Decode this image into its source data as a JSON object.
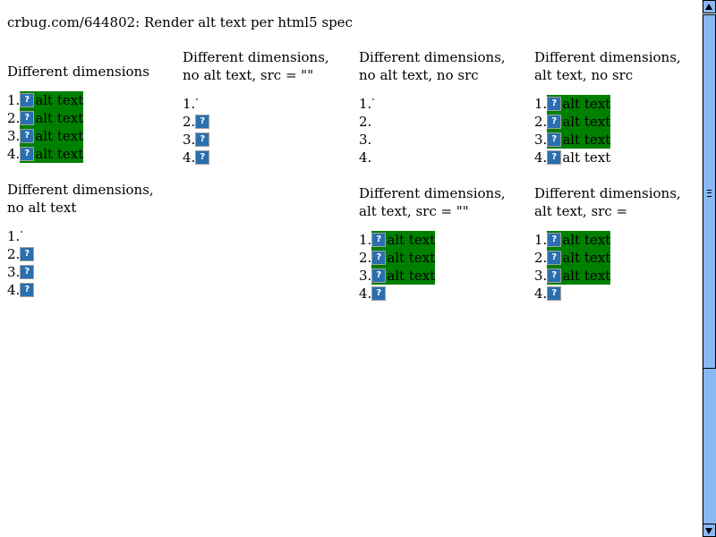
{
  "page": {
    "title": "crbug.com/644802: Render alt text per html5 spec"
  },
  "sections": [
    {
      "id": "diff-dims",
      "title": "Different dimensions",
      "rows": [
        {
          "num": "1.",
          "kind": "icon-alt",
          "alt": "alt text"
        },
        {
          "num": "2.",
          "kind": "icon-alt",
          "alt": "alt text"
        },
        {
          "num": "3.",
          "kind": "icon-alt",
          "alt": "alt text"
        },
        {
          "num": "4.",
          "kind": "icon-alt",
          "alt": "alt text"
        }
      ]
    },
    {
      "id": "diff-dims-no-alt",
      "title": "Different dimensions, no alt text",
      "rows": [
        {
          "num": "1.",
          "kind": "dot"
        },
        {
          "num": "2.",
          "kind": "icon"
        },
        {
          "num": "3.",
          "kind": "icon"
        },
        {
          "num": "4.",
          "kind": "icon"
        }
      ]
    },
    {
      "id": "diff-dims-no-alt-src-empty",
      "title": "Different dimensions, no alt text, src = \"\"",
      "rows": [
        {
          "num": "1.",
          "kind": "dot"
        },
        {
          "num": "2.",
          "kind": "icon"
        },
        {
          "num": "3.",
          "kind": "icon"
        },
        {
          "num": "4.",
          "kind": "icon"
        }
      ]
    },
    {
      "id": "diff-dims-no-alt-no-src",
      "title": "Different dimensions, no alt text, no src",
      "rows": [
        {
          "num": "1.",
          "kind": "dot"
        },
        {
          "num": "2.",
          "kind": "none"
        },
        {
          "num": "3.",
          "kind": "none"
        },
        {
          "num": "4.",
          "kind": "none"
        }
      ]
    },
    {
      "id": "diff-dims-alt-src-empty",
      "title": "Different dimensions, alt text, src = \"\"",
      "rows": [
        {
          "num": "1.",
          "kind": "icon-alt",
          "alt": "alt text"
        },
        {
          "num": "2.",
          "kind": "icon-alt",
          "alt": "alt text"
        },
        {
          "num": "3.",
          "kind": "icon-alt",
          "alt": "alt text"
        },
        {
          "num": "4.",
          "kind": "icon"
        }
      ]
    },
    {
      "id": "diff-dims-alt-no-src",
      "title": "Different dimensions, alt text, no src",
      "rows": [
        {
          "num": "1.",
          "kind": "icon-alt",
          "alt": "alt text"
        },
        {
          "num": "2.",
          "kind": "icon-alt",
          "alt": "alt text"
        },
        {
          "num": "3.",
          "kind": "icon-alt",
          "alt": "alt text"
        },
        {
          "num": "4.",
          "kind": "icon-plain-alt",
          "alt": "alt text"
        }
      ]
    },
    {
      "id": "diff-dims-alt-src-blank",
      "title": "Different dimensions, alt text, src =",
      "rows": [
        {
          "num": "1.",
          "kind": "icon-alt",
          "alt": "alt text"
        },
        {
          "num": "2.",
          "kind": "icon-alt",
          "alt": "alt text"
        },
        {
          "num": "3.",
          "kind": "icon-alt",
          "alt": "alt text"
        },
        {
          "num": "4.",
          "kind": "icon"
        }
      ]
    }
  ],
  "icons": {
    "broken_image": "broken-image-icon",
    "glyph": "?"
  },
  "colors": {
    "alt_background": "#008000",
    "scrollbar": "#8ab8f5"
  }
}
